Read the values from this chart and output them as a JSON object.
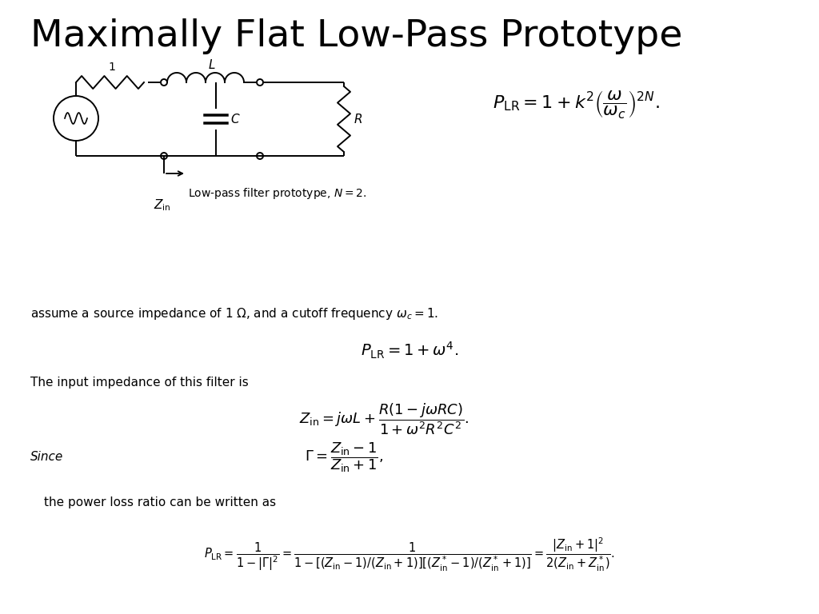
{
  "title": "Maximally Flat Low-Pass Prototype",
  "title_fontsize": 34,
  "bg_color": "#ffffff",
  "text_color": "#000000",
  "fig_width": 10.24,
  "fig_height": 7.68,
  "eq1": "$P_{\\mathrm{LR}} = 1 + k^2 \\left(\\dfrac{\\omega}{\\omega_c}\\right)^{2N}$.",
  "caption1": "Low-pass filter prototype, $N = 2$.",
  "zin_label": "$Z_{\\mathrm{in}}$",
  "assume_text": "assume a source impedance of 1 $\\Omega$, and a cutoff frequency $\\omega_c = 1$.",
  "eq2": "$P_{\\mathrm{LR}} = 1 + \\omega^4$.",
  "eq3_label": "The input impedance of this filter is",
  "eq3": "$Z_{\\mathrm{in}} = j\\omega L + \\dfrac{R(1 - j\\omega RC)}{1 + \\omega^2 R^2 C^2}$.",
  "since_label": "Since",
  "eq4": "$\\Gamma = \\dfrac{Z_{\\mathrm{in}} - 1}{Z_{\\mathrm{in}} + 1}$,",
  "eq5_label": "the power loss ratio can be written as",
  "eq5": "$P_{\\mathrm{LR}} = \\dfrac{1}{1 - |\\Gamma|^2} = \\dfrac{1}{1 - [(Z_{\\mathrm{in}}-1)/(Z_{\\mathrm{in}}+1)][(Z^*_{\\mathrm{in}}-1)/(Z^*_{\\mathrm{in}}+1)]} = \\dfrac{|Z_{\\mathrm{in}}+1|^2}{2(Z_{\\mathrm{in}}+Z^*_{\\mathrm{in}})}$."
}
